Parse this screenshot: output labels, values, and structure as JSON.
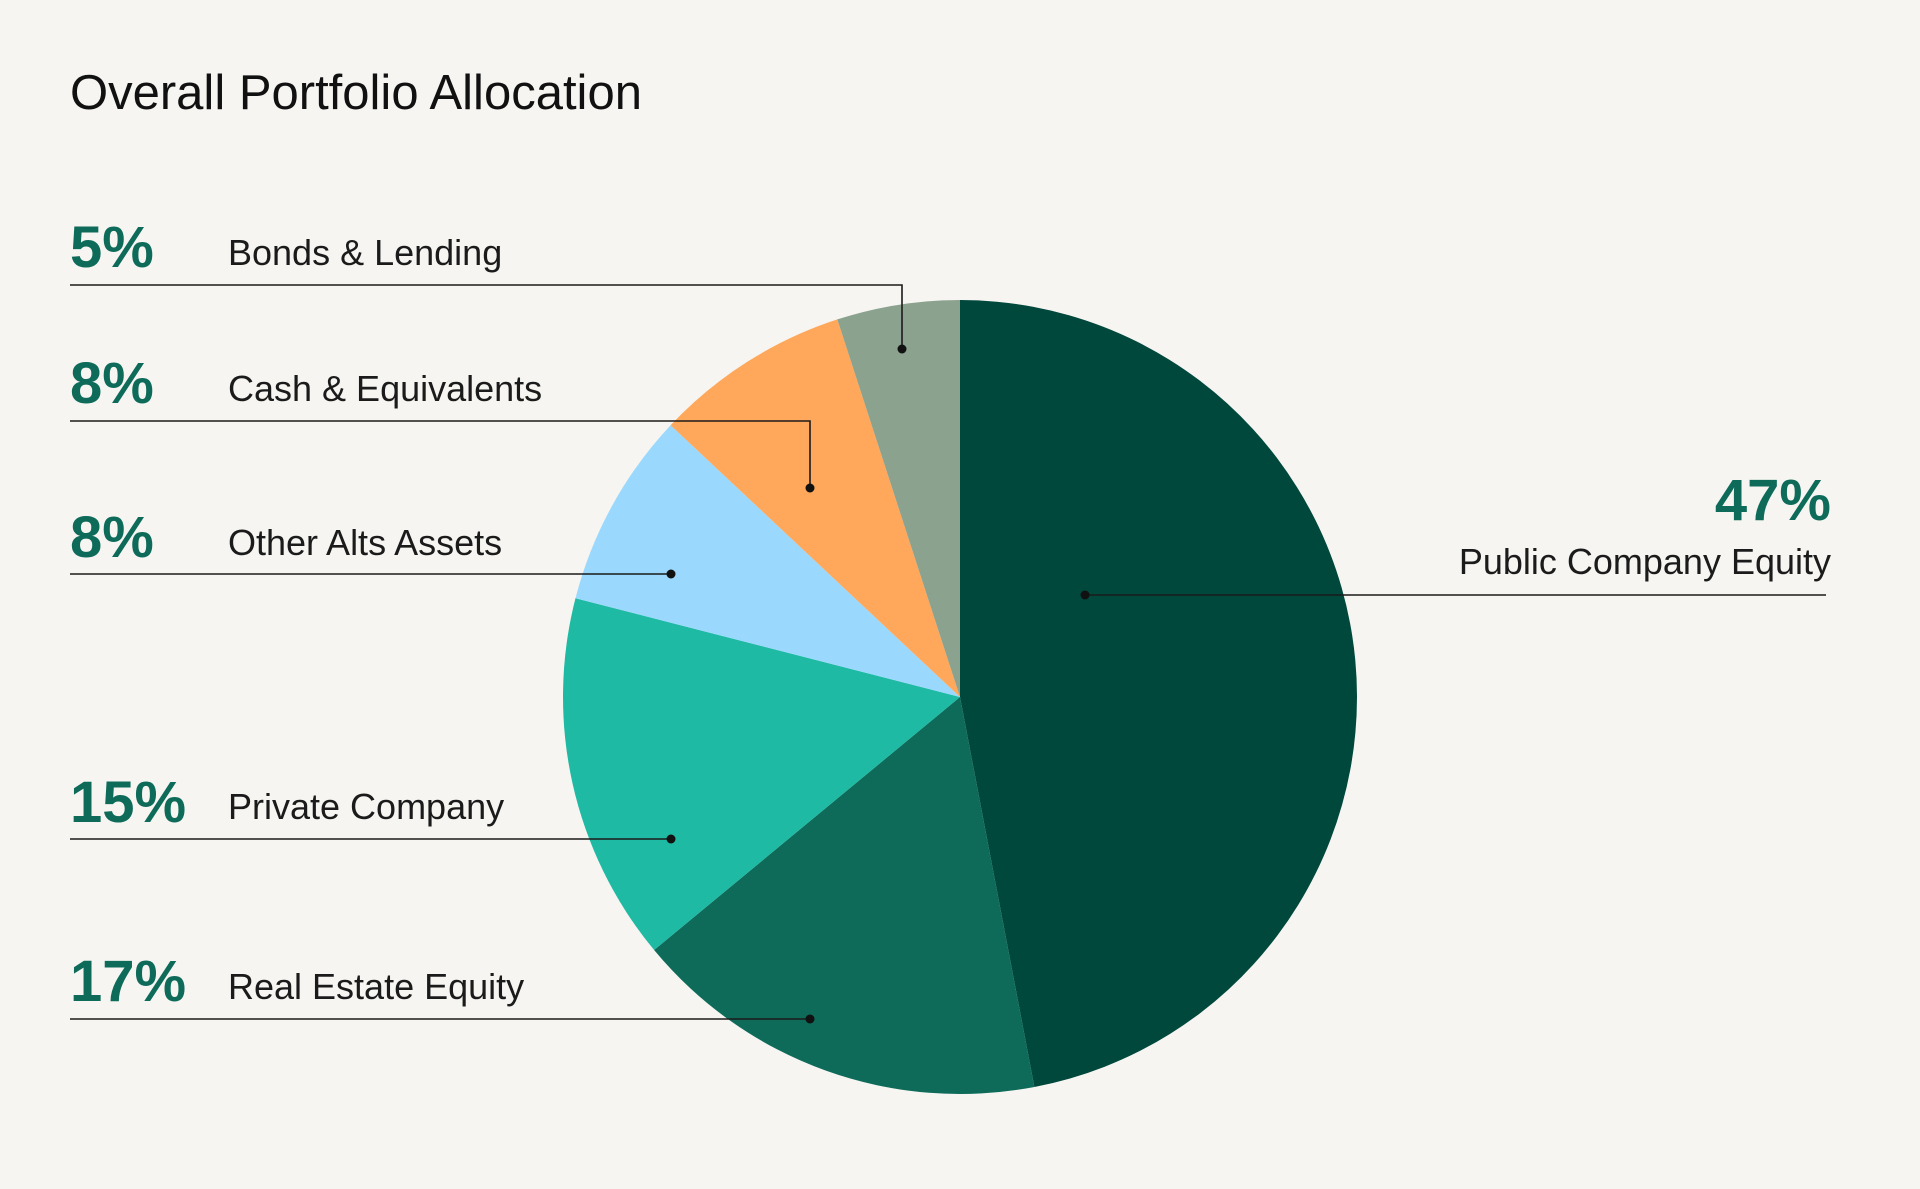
{
  "title": "Overall Portfolio Allocation",
  "chart_data": {
    "type": "pie",
    "title": "Overall Portfolio Allocation",
    "start_angle_deg": 0,
    "direction": "clockwise",
    "slices": [
      {
        "label": "Public Company Equity",
        "value": 47,
        "display": "47%",
        "color": "#00473c"
      },
      {
        "label": "Real Estate Equity",
        "value": 17,
        "display": "17%",
        "color": "#0e6b5a"
      },
      {
        "label": "Private Company",
        "value": 15,
        "display": "15%",
        "color": "#1fbaa3"
      },
      {
        "label": "Other Alts Assets",
        "value": 8,
        "display": "8%",
        "color": "#9ad9fd"
      },
      {
        "label": "Cash & Equivalents",
        "value": 8,
        "display": "8%",
        "color": "#ffa85b"
      },
      {
        "label": "Bonds & Lending",
        "value": 5,
        "display": "5%",
        "color": "#8ba28f"
      }
    ]
  }
}
